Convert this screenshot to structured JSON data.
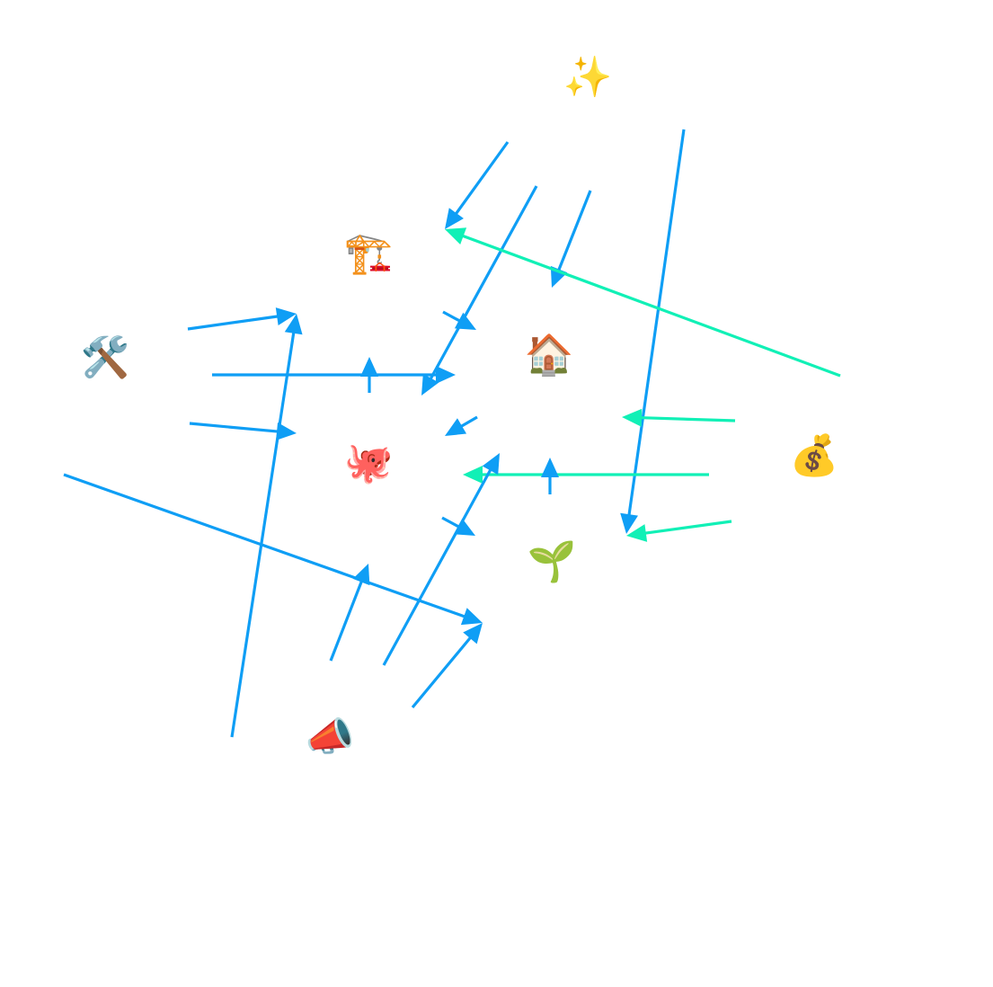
{
  "colors": {
    "blue": "#0f9ef5",
    "teal": "#11f0b6"
  },
  "nodes": [
    {
      "id": "sparkles",
      "icon": "sparkles-icon",
      "glyph": "✨"
    },
    {
      "id": "crane",
      "icon": "building-construction-icon",
      "glyph": "🏗️"
    },
    {
      "id": "tools",
      "icon": "hammer-and-wrench-icon",
      "glyph": "🛠️"
    },
    {
      "id": "house",
      "icon": "house-icon",
      "glyph": "🏠"
    },
    {
      "id": "octopus",
      "icon": "octopus-icon",
      "glyph": "🐙"
    },
    {
      "id": "money",
      "icon": "money-bag-icon",
      "glyph": "💰"
    },
    {
      "id": "seedling",
      "icon": "seedling-icon",
      "glyph": "🌱"
    },
    {
      "id": "megaphone",
      "icon": "megaphone-icon",
      "glyph": "📣"
    }
  ],
  "edges": [
    {
      "name": "arrow-sparkles-to-crane",
      "color": "blue"
    },
    {
      "name": "arrow-sparkles-to-octopus",
      "color": "blue"
    },
    {
      "name": "arrow-sparkles-to-house",
      "color": "blue"
    },
    {
      "name": "arrow-sparkles-to-seedling",
      "color": "blue"
    },
    {
      "name": "arrow-money-to-crane",
      "color": "teal"
    },
    {
      "name": "arrow-tools-to-crane",
      "color": "blue"
    },
    {
      "name": "arrow-tools-to-house",
      "color": "blue"
    },
    {
      "name": "arrow-tools-to-octopus",
      "color": "blue"
    },
    {
      "name": "arrow-octopus-to-crane",
      "color": "blue"
    },
    {
      "name": "arrow-crane-to-house",
      "color": "blue"
    },
    {
      "name": "arrow-house-to-octopus",
      "color": "blue"
    },
    {
      "name": "arrow-money-to-house",
      "color": "teal"
    },
    {
      "name": "arrow-money-to-octopus",
      "color": "teal"
    },
    {
      "name": "arrow-seedling-to-house",
      "color": "blue"
    },
    {
      "name": "arrow-money-to-seedling",
      "color": "teal"
    },
    {
      "name": "arrow-octopus-to-seedling",
      "color": "blue"
    },
    {
      "name": "arrow-tools-to-seedling",
      "color": "blue"
    },
    {
      "name": "arrow-megaphone-to-crane",
      "color": "blue"
    },
    {
      "name": "arrow-megaphone-to-house",
      "color": "blue"
    },
    {
      "name": "arrow-megaphone-to-octopus",
      "color": "blue"
    },
    {
      "name": "arrow-megaphone-to-seedling",
      "color": "blue"
    }
  ]
}
